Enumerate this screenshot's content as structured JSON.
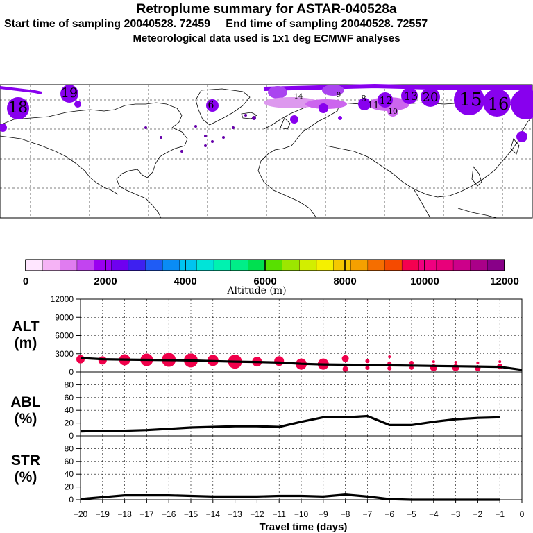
{
  "header": {
    "title": "Retroplume summary for ASTAR-040528a",
    "start_label": "Start time of sampling 20040528. 72459",
    "end_label": "End time of sampling 20040528. 72557",
    "meteo": "Meteorological data used is 1x1 deg ECMWF analyses"
  },
  "map": {
    "labels": [
      {
        "text": "19",
        "cls": "big"
      },
      {
        "text": "18",
        "cls": "big"
      },
      {
        "text": "20",
        "cls": "big"
      },
      {
        "text": "15",
        "cls": "huge"
      },
      {
        "text": "16",
        "cls": "huge"
      },
      {
        "text": "13",
        "cls": "mid"
      },
      {
        "text": "12",
        "cls": "mid"
      },
      {
        "text": "11",
        "cls": "mid"
      },
      {
        "text": "10",
        "cls": "small"
      },
      {
        "text": "8",
        "cls": "mid"
      },
      {
        "text": "6",
        "cls": "small"
      },
      {
        "text": "14",
        "cls": "small"
      },
      {
        "text": "9",
        "cls": "small"
      }
    ],
    "colors": {
      "plume_dark": "#8800ee",
      "plume_light": "#cc66ee",
      "plume_pale": "#dd99ee",
      "dot": "#6600aa"
    }
  },
  "colorbar": {
    "title": "Altitude (m)",
    "ticks": [
      "0",
      "2000",
      "4000",
      "6000",
      "8000",
      "10000",
      "12000"
    ],
    "colors": [
      "#ffe6ff",
      "#f5b3f5",
      "#e07cf0",
      "#c244f0",
      "#9a00f0",
      "#6f00f0",
      "#3e20f0",
      "#1f5cf5",
      "#0a8cf5",
      "#00c4f0",
      "#00e4d8",
      "#00f2b0",
      "#00ee88",
      "#00e050",
      "#58e000",
      "#9ce600",
      "#d2ee00",
      "#f5f000",
      "#f5c800",
      "#f5a000",
      "#f56e00",
      "#f54a00",
      "#f50050",
      "#f00080",
      "#e8007a",
      "#cc008a",
      "#aa0088",
      "#880088"
    ]
  },
  "chart_data": [
    {
      "type": "line",
      "name": "ALT",
      "ylabel": "ALT\n(m)",
      "x": [
        -20,
        -19,
        -18,
        -17,
        -16,
        -15,
        -14,
        -13,
        -12,
        -11,
        -10,
        -9,
        -8,
        -7,
        -6,
        -5,
        -4,
        -3,
        -2,
        -1,
        0
      ],
      "y": [
        2300,
        2100,
        2050,
        2000,
        1950,
        1900,
        1800,
        1700,
        1650,
        1550,
        1350,
        1250,
        1200,
        1150,
        1100,
        1050,
        1000,
        950,
        900,
        850,
        350
      ],
      "ylim": [
        0,
        12000
      ],
      "yticks": [
        "0",
        "3000",
        "6000",
        "9000",
        "12000"
      ],
      "scatter_color": "#f0004a",
      "points": [
        {
          "x": -20,
          "y": 2100,
          "s": 6
        },
        {
          "x": -19,
          "y": 1900,
          "s": 6
        },
        {
          "x": -18,
          "y": 2000,
          "s": 8
        },
        {
          "x": -17,
          "y": 2000,
          "s": 9
        },
        {
          "x": -16,
          "y": 2000,
          "s": 10
        },
        {
          "x": -15,
          "y": 1900,
          "s": 10
        },
        {
          "x": -14,
          "y": 1900,
          "s": 8
        },
        {
          "x": -13,
          "y": 1700,
          "s": 10
        },
        {
          "x": -12,
          "y": 1700,
          "s": 7
        },
        {
          "x": -11,
          "y": 1800,
          "s": 7
        },
        {
          "x": -10,
          "y": 1300,
          "s": 8
        },
        {
          "x": -9,
          "y": 1300,
          "s": 8
        },
        {
          "x": -8,
          "y": 2200,
          "s": 5
        },
        {
          "x": -8,
          "y": 500,
          "s": 4
        },
        {
          "x": -7,
          "y": 1800,
          "s": 3
        },
        {
          "x": -7,
          "y": 700,
          "s": 3
        },
        {
          "x": -6,
          "y": 2500,
          "s": 2
        },
        {
          "x": -6,
          "y": 1400,
          "s": 3
        },
        {
          "x": -6,
          "y": 600,
          "s": 3
        },
        {
          "x": -5,
          "y": 1500,
          "s": 3
        },
        {
          "x": -5,
          "y": 700,
          "s": 3
        },
        {
          "x": -4,
          "y": 1700,
          "s": 2
        },
        {
          "x": -4,
          "y": 700,
          "s": 5
        },
        {
          "x": -3,
          "y": 1600,
          "s": 2
        },
        {
          "x": -3,
          "y": 700,
          "s": 5
        },
        {
          "x": -2,
          "y": 1500,
          "s": 2
        },
        {
          "x": -2,
          "y": 600,
          "s": 4
        },
        {
          "x": -1,
          "y": 1700,
          "s": 2
        },
        {
          "x": -1,
          "y": 900,
          "s": 4
        }
      ]
    },
    {
      "type": "line",
      "name": "ABL",
      "ylabel": "ABL\n(%)",
      "x": [
        -20,
        -19,
        -18,
        -17,
        -16,
        -15,
        -14,
        -13,
        -12,
        -11,
        -10,
        -9,
        -8,
        -7,
        -6,
        -5,
        -4,
        -3,
        -2,
        -1
      ],
      "y": [
        7,
        8,
        8,
        9,
        11,
        13,
        14,
        15,
        15,
        14,
        22,
        29,
        29,
        31,
        17,
        17,
        22,
        26,
        28,
        29
      ],
      "ylim": [
        0,
        100
      ],
      "yticks": [
        "0",
        "20",
        "40",
        "60",
        "80"
      ]
    },
    {
      "type": "line",
      "name": "STR",
      "ylabel": "STR\n(%)",
      "x": [
        -20,
        -19,
        -18,
        -17,
        -16,
        -15,
        -14,
        -13,
        -12,
        -11,
        -10,
        -9,
        -8,
        -7,
        -6,
        -5,
        -4,
        -3,
        -2,
        -1
      ],
      "y": [
        1,
        4,
        7,
        7,
        7,
        6,
        5,
        5,
        5,
        6,
        6,
        5,
        8,
        5,
        1,
        0,
        0,
        0,
        0,
        0
      ],
      "ylim": [
        0,
        100
      ],
      "yticks": [
        "0",
        "20",
        "40",
        "60",
        "80"
      ]
    }
  ],
  "xaxis": {
    "label": "Travel time (days)",
    "ticks": [
      "−20",
      "−19",
      "−18",
      "−17",
      "−16",
      "−15",
      "−14",
      "−13",
      "−12",
      "−11",
      "−10",
      "−9",
      "−8",
      "−7",
      "−6",
      "−5",
      "−4",
      "−3",
      "−2",
      "−1",
      "0"
    ]
  }
}
